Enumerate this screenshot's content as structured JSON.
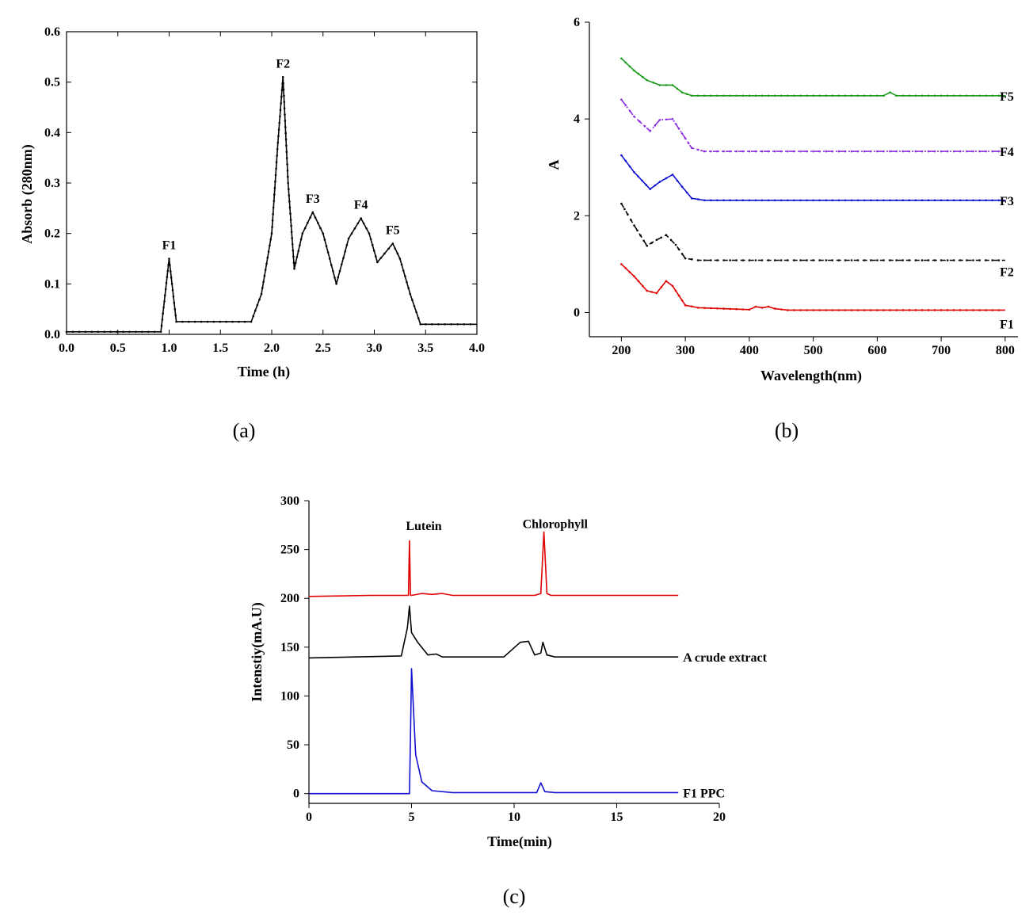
{
  "chart_data": [
    {
      "panel": "(a)",
      "type": "line",
      "title": "",
      "xlabel": "Time (h)",
      "ylabel": "Absorb (280nm)",
      "xlim": [
        0,
        4.0
      ],
      "ylim": [
        0,
        0.6
      ],
      "xticks": [
        0.0,
        0.5,
        1.0,
        1.5,
        2.0,
        2.5,
        3.0,
        3.5,
        4.0
      ],
      "yticks": [
        0.0,
        0.1,
        0.2,
        0.3,
        0.4,
        0.5,
        0.6
      ],
      "xtick_labels": [
        "0.0",
        "0.5",
        "1.0",
        "1.5",
        "2.0",
        "2.5",
        "3.0",
        "3.5",
        "4.0"
      ],
      "ytick_labels": [
        "0.0",
        "0.1",
        "0.2",
        "0.3",
        "0.4",
        "0.5",
        "0.6"
      ],
      "color": "#000000",
      "x": [
        0,
        0.92,
        1.0,
        1.07,
        1.8,
        1.9,
        2.0,
        2.06,
        2.11,
        2.16,
        2.22,
        2.3,
        2.4,
        2.5,
        2.63,
        2.75,
        2.87,
        2.95,
        3.03,
        3.1,
        3.18,
        3.25,
        3.35,
        3.45,
        3.5,
        4.0
      ],
      "y": [
        0.005,
        0.005,
        0.15,
        0.025,
        0.025,
        0.08,
        0.2,
        0.38,
        0.51,
        0.3,
        0.13,
        0.2,
        0.242,
        0.2,
        0.1,
        0.19,
        0.23,
        0.2,
        0.143,
        0.16,
        0.18,
        0.15,
        0.08,
        0.02,
        0.02,
        0.02
      ],
      "peaks": [
        {
          "label": "F1",
          "x": 1.0,
          "y": 0.15
        },
        {
          "label": "F2",
          "x": 2.11,
          "y": 0.51
        },
        {
          "label": "F3",
          "x": 2.4,
          "y": 0.242
        },
        {
          "label": "F4",
          "x": 2.87,
          "y": 0.23
        },
        {
          "label": "F5",
          "x": 3.18,
          "y": 0.18
        }
      ]
    },
    {
      "panel": "(b)",
      "type": "line",
      "title": "",
      "xlabel": "Wavelength(nm)",
      "ylabel": "A",
      "xlim": [
        150,
        820
      ],
      "ylim": [
        -0.5,
        6
      ],
      "xticks": [
        200,
        300,
        400,
        500,
        600,
        700,
        800
      ],
      "yticks": [
        0,
        2,
        4,
        6
      ],
      "xtick_labels": [
        "200",
        "300",
        "400",
        "500",
        "600",
        "700",
        "800"
      ],
      "ytick_labels": [
        "0",
        "2",
        "4",
        "6"
      ],
      "series": [
        {
          "name": "F1",
          "color": "#e00000",
          "dash": "",
          "x": [
            200,
            220,
            240,
            255,
            270,
            280,
            300,
            320,
            400,
            410,
            420,
            430,
            440,
            460,
            600,
            800
          ],
          "y": [
            1.0,
            0.75,
            0.45,
            0.4,
            0.65,
            0.55,
            0.15,
            0.1,
            0.06,
            0.12,
            0.1,
            0.12,
            0.08,
            0.05,
            0.05,
            0.05
          ]
        },
        {
          "name": "F2",
          "color": "#000000",
          "dash": "6,5",
          "x": [
            200,
            220,
            240,
            255,
            270,
            285,
            300,
            320,
            800
          ],
          "y": [
            2.25,
            1.8,
            1.38,
            1.5,
            1.6,
            1.4,
            1.12,
            1.08,
            1.08
          ]
        },
        {
          "name": "F3",
          "color": "#1010d0",
          "dash": "",
          "x": [
            200,
            220,
            245,
            260,
            280,
            295,
            310,
            330,
            800
          ],
          "y": [
            3.25,
            2.9,
            2.55,
            2.7,
            2.85,
            2.6,
            2.36,
            2.32,
            2.32
          ]
        },
        {
          "name": "F4",
          "color": "#8a2be2",
          "dash": "8,3,2,3",
          "x": [
            200,
            220,
            245,
            260,
            280,
            295,
            310,
            330,
            800
          ],
          "y": [
            4.4,
            4.05,
            3.75,
            3.98,
            4.0,
            3.7,
            3.4,
            3.33,
            3.33
          ]
        },
        {
          "name": "F5",
          "color": "#1a9a1a",
          "dash": "",
          "x": [
            200,
            220,
            240,
            260,
            280,
            295,
            310,
            610,
            620,
            630,
            640,
            800
          ],
          "y": [
            5.25,
            5.0,
            4.8,
            4.7,
            4.7,
            4.55,
            4.48,
            4.48,
            4.55,
            4.48,
            4.48,
            4.48
          ]
        }
      ]
    },
    {
      "panel": "(c)",
      "type": "line",
      "title": "",
      "xlabel": "Time(min)",
      "ylabel": "Intenstiy(mA.U)",
      "xlim": [
        0,
        20
      ],
      "ylim": [
        -10,
        300
      ],
      "xticks": [
        0,
        5,
        10,
        15,
        20
      ],
      "yticks": [
        0,
        50,
        100,
        150,
        200,
        250,
        300
      ],
      "xtick_labels": [
        "0",
        "5",
        "10",
        "15",
        "20"
      ],
      "ytick_labels": [
        "0",
        "50",
        "100",
        "150",
        "200",
        "250",
        "300"
      ],
      "annotations": [
        {
          "text": "Lutein",
          "x": 5.6,
          "y": 270
        },
        {
          "text": "Chlorophyll",
          "x": 12.0,
          "y": 272
        }
      ],
      "series": [
        {
          "name": "",
          "color": "#e00000",
          "x": [
            0,
            3,
            4.85,
            4.9,
            4.95,
            5.0,
            5.5,
            6.0,
            6.5,
            7.0,
            11.0,
            11.3,
            11.45,
            11.6,
            11.8,
            18
          ],
          "y": [
            202,
            203,
            203,
            259,
            203,
            203,
            205,
            204,
            205,
            203,
            203,
            205,
            268,
            205,
            203,
            203
          ]
        },
        {
          "name": "A crude extract",
          "color": "#000000",
          "x": [
            0,
            4.5,
            4.8,
            4.9,
            5.0,
            5.3,
            5.8,
            6.2,
            6.5,
            9.5,
            10.3,
            10.7,
            11.0,
            11.3,
            11.4,
            11.6,
            12,
            18
          ],
          "y": [
            139,
            141,
            170,
            192,
            165,
            155,
            142,
            143,
            140,
            140,
            155,
            156,
            142,
            144,
            155,
            142,
            140,
            140
          ]
        },
        {
          "name": "F1 PPC",
          "color": "#1010d0",
          "x": [
            0,
            4.9,
            4.95,
            5.0,
            5.2,
            5.5,
            6.0,
            7.0,
            11.1,
            11.3,
            11.5,
            12,
            18
          ],
          "y": [
            0,
            0,
            60,
            128,
            40,
            12,
            3,
            1,
            1,
            11,
            2,
            1,
            1
          ]
        }
      ]
    }
  ]
}
